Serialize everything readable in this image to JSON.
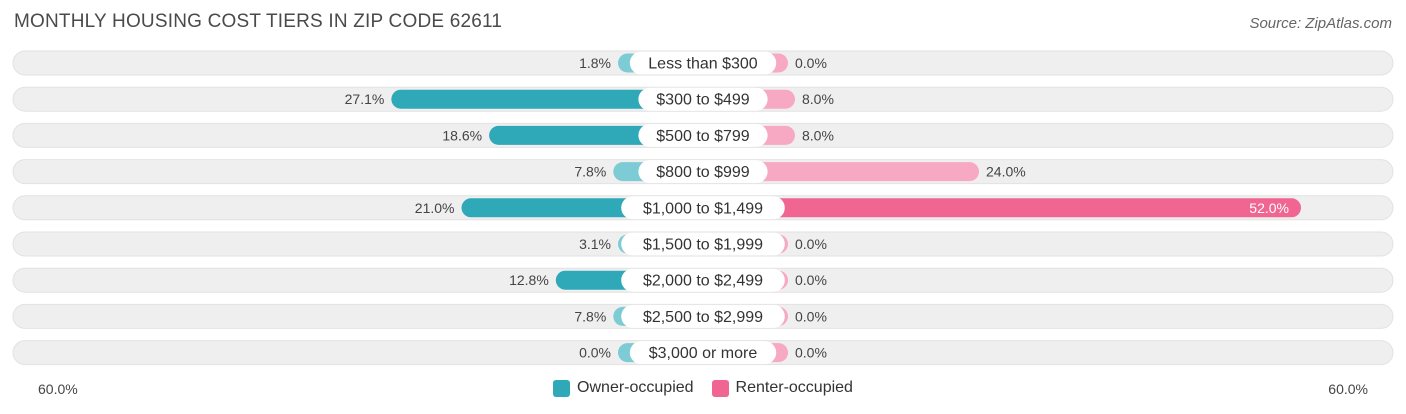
{
  "header": {
    "title": "MONTHLY HOUSING COST TIERS IN ZIP CODE 62611",
    "source": "Source: ZipAtlas.com"
  },
  "colors": {
    "owner": "#2fa8b8",
    "owner_light": "#7dcbd5",
    "renter": "#f06592",
    "renter_light": "#f7a8c2",
    "row_bg": "#efefef"
  },
  "chart_data": {
    "type": "bar",
    "orientation": "horizontal-diverging",
    "categories": [
      "Less than $300",
      "$300 to $499",
      "$500 to $799",
      "$800 to $999",
      "$1,000 to $1,499",
      "$1,500 to $1,999",
      "$2,000 to $2,499",
      "$2,500 to $2,999",
      "$3,000 or more"
    ],
    "series": [
      {
        "name": "Owner-occupied",
        "values": [
          1.8,
          27.1,
          18.6,
          7.8,
          21.0,
          3.1,
          12.8,
          7.8,
          0.0
        ],
        "labels": [
          "1.8%",
          "27.1%",
          "18.6%",
          "7.8%",
          "21.0%",
          "3.1%",
          "12.8%",
          "7.8%",
          "0.0%"
        ]
      },
      {
        "name": "Renter-occupied",
        "values": [
          0.0,
          8.0,
          8.0,
          24.0,
          52.0,
          0.0,
          0.0,
          0.0,
          0.0
        ],
        "labels": [
          "0.0%",
          "8.0%",
          "8.0%",
          "24.0%",
          "52.0%",
          "0.0%",
          "0.0%",
          "0.0%",
          "0.0%"
        ]
      }
    ],
    "axis_max": 60,
    "axis_left_label": "60.0%",
    "axis_right_label": "60.0%",
    "legend_position": "bottom-center"
  }
}
